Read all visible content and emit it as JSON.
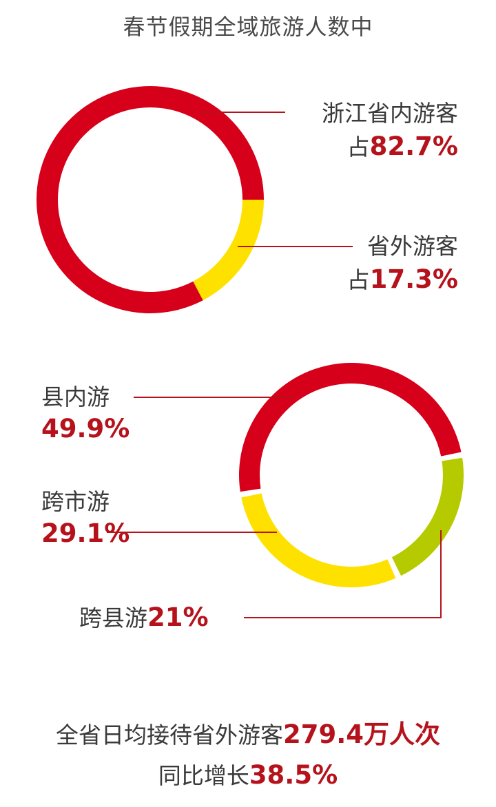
{
  "title": "春节假期全域旅游人数中",
  "chart_data": [
    {
      "type": "pie",
      "categories": [
        "浙江省内游客",
        "省外游客"
      ],
      "values": [
        82.7,
        17.3
      ],
      "colors": [
        "#d7001a",
        "#ffe100"
      ],
      "labels": [
        {
          "name": "浙江省内游客",
          "prefix": "占",
          "value": "82.7%"
        },
        {
          "name": "省外游客",
          "prefix": "占",
          "value": "17.3%"
        }
      ]
    },
    {
      "type": "pie",
      "categories": [
        "县内游",
        "跨市游",
        "跨县游"
      ],
      "values": [
        49.9,
        29.1,
        21
      ],
      "colors": [
        "#d7001a",
        "#ffe100",
        "#b6ca00"
      ],
      "labels": [
        {
          "name": "县内游",
          "value": "49.9%"
        },
        {
          "name": "跨市游",
          "value": "29.1%"
        },
        {
          "name": "跨县游",
          "value": "21%"
        }
      ]
    }
  ],
  "footer": {
    "line1_text": "全省日均接待省外游客",
    "line1_value": "279.4万人次",
    "line2_text": "同比增长",
    "line2_value": "38.5%"
  }
}
